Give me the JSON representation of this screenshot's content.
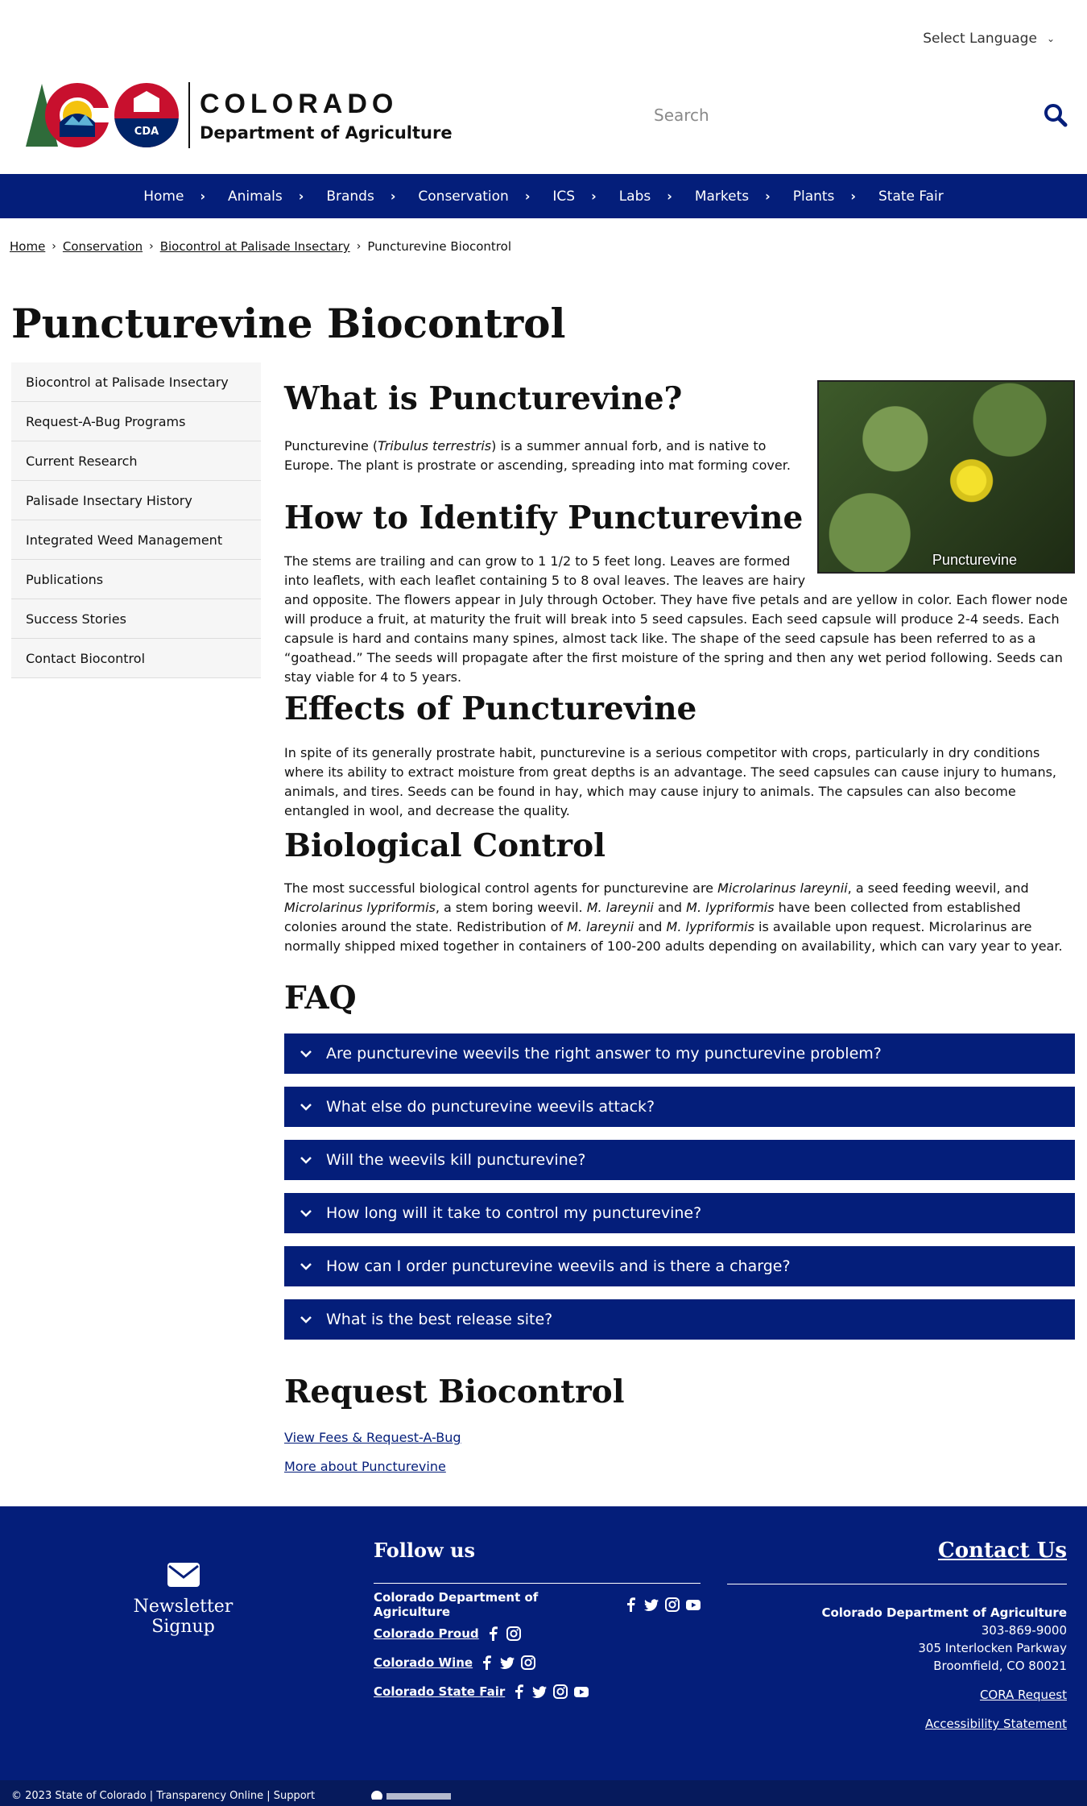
{
  "top": {
    "language_label": "Select Language"
  },
  "header": {
    "logo_title": "COLORADO",
    "logo_subtitle": "Department of Agriculture",
    "logo_badge": "CDA",
    "search_placeholder": "Search"
  },
  "nav": {
    "items": [
      {
        "label": "Home"
      },
      {
        "label": "Animals"
      },
      {
        "label": "Brands"
      },
      {
        "label": "Conservation"
      },
      {
        "label": "ICS"
      },
      {
        "label": "Labs"
      },
      {
        "label": "Markets"
      },
      {
        "label": "Plants"
      },
      {
        "label": "State Fair"
      }
    ]
  },
  "breadcrumb": {
    "items": [
      "Home",
      "Conservation",
      "Biocontrol at Palisade Insectary"
    ],
    "current": "Puncturevine Biocontrol"
  },
  "page_title": "Puncturevine Biocontrol",
  "sidebar": {
    "items": [
      {
        "label": "Biocontrol at Palisade Insectary"
      },
      {
        "label": "Request-A-Bug Programs"
      },
      {
        "label": "Current Research"
      },
      {
        "label": "Palisade Insectary History"
      },
      {
        "label": "Integrated Weed Management"
      },
      {
        "label": "Publications"
      },
      {
        "label": "Success Stories"
      },
      {
        "label": "Contact Biocontrol"
      }
    ]
  },
  "main": {
    "image_caption": "Puncturevine",
    "s1_heading": "What is Puncturevine?",
    "s1_p_a": "Puncturevine (",
    "s1_p_italic": "Tribulus terrestris",
    "s1_p_b": ") is a summer annual forb, and is native to Europe. The plant is prostrate or ascending, spreading into mat forming cover.",
    "s2_heading": "How to Identify Puncturevine",
    "s2_p": "The stems are trailing and can grow to 1 1/2 to 5 feet long. Leaves are formed into leaflets, with each leaflet containing 5 to 8 oval leaves. The leaves are hairy and opposite. The flowers appear in July through October. They have five petals and are yellow in color. Each flower node will produce a fruit, at maturity the fruit will break into 5 seed capsules. Each seed capsule will produce 2-4 seeds. Each capsule is hard and contains many spines, almost tack like. The shape of the seed capsule has been referred to as a “goathead.” The seeds will propagate after the first moisture of the spring and then any wet period following. Seeds can stay viable for 4 to 5 years.",
    "s3_heading": "Effects of Puncturevine",
    "s3_p": "In spite of its generally prostrate habit, puncturevine is a serious competitor with crops, particularly in dry conditions where its ability to extract moisture from great depths is an advantage. The seed capsules can cause injury to humans, animals, and tires. Seeds can be found in hay, which may cause injury to animals. The capsules can also become entangled in wool, and decrease the quality.",
    "s4_heading": "Biological Control",
    "s4_parts": [
      "The most successful biological control agents for puncturevine are ",
      "Microlarinus lareynii",
      ", a seed feeding weevil, and ",
      "Microlarinus lypriformis",
      ", a stem boring weevil. ",
      "M. lareynii",
      " and ",
      "M. lypriformis",
      " have been collected from established colonies around the state. Redistribution of ",
      "M. lareynii",
      " and ",
      "M. lypriformis",
      " is available upon request. Microlarinus are normally shipped mixed together in containers of 100-200 adults depending on availability, which can vary year to year."
    ],
    "faq_heading": "FAQ",
    "faq": [
      "Are puncturevine weevils the right answer to my puncturevine problem?",
      "What else do puncturevine weevils attack?",
      "Will the weevils kill puncturevine?",
      "How long will it take to control my puncturevine?",
      "How can I order puncturevine weevils and is there a charge?",
      "What is the best release site?"
    ],
    "request_heading": "Request Biocontrol",
    "request_links": [
      "View Fees & Request-A-Bug",
      "More about Puncturevine"
    ]
  },
  "footer": {
    "newsletter": "Newsletter Signup",
    "follow_heading": "Follow us",
    "social": [
      {
        "label": "Colorado Department of Agriculture",
        "icons": [
          "facebook-icon",
          "twitter-icon",
          "instagram-icon",
          "youtube-icon"
        ]
      },
      {
        "label": "Colorado Proud",
        "icons": [
          "facebook-icon",
          "instagram-icon"
        ]
      },
      {
        "label": "Colorado Wine",
        "icons": [
          "facebook-icon",
          "twitter-icon",
          "instagram-icon"
        ]
      },
      {
        "label": "Colorado State Fair",
        "icons": [
          "facebook-icon",
          "twitter-icon",
          "instagram-icon",
          "youtube-icon"
        ]
      }
    ],
    "contact_heading": "Contact Us",
    "org": "Colorado Department of Agriculture",
    "phone": "303-869-9000",
    "address1": "305 Interlocken Parkway",
    "address2": "Broomfield, CO 80021",
    "cora": "CORA Request",
    "accessibility": "Accessibility Statement",
    "copyright": "© 2023 State of Colorado  |  Transparency Online  |  Support"
  },
  "colors": {
    "navy": "#041e7a",
    "red": "#c8102e",
    "gold": "#f4c20d"
  }
}
